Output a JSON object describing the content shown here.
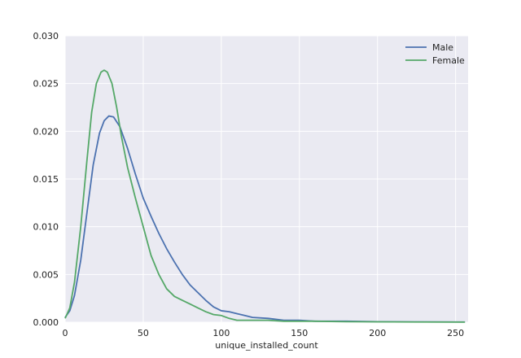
{
  "chart_data": {
    "type": "line",
    "title": "",
    "xlabel": "unique_installed_count",
    "ylabel": "",
    "xlim": [
      0,
      258
    ],
    "ylim": [
      0,
      0.03
    ],
    "x_ticks": [
      0,
      50,
      100,
      150,
      200,
      250
    ],
    "x_tick_labels": [
      "0",
      "50",
      "100",
      "150",
      "200",
      "250"
    ],
    "y_ticks": [
      0,
      0.005,
      0.01,
      0.015,
      0.02,
      0.025,
      0.03
    ],
    "y_tick_labels": [
      "0.000",
      "0.005",
      "0.010",
      "0.015",
      "0.020",
      "0.025",
      "0.030"
    ],
    "grid": true,
    "legend_position": "top-right",
    "background_color": "#EAEAF2",
    "series": [
      {
        "name": "Male",
        "color": "#4C72B0",
        "points": [
          [
            0,
            0.0005
          ],
          [
            3,
            0.0012
          ],
          [
            6,
            0.0028
          ],
          [
            10,
            0.0065
          ],
          [
            14,
            0.0115
          ],
          [
            18,
            0.0165
          ],
          [
            22,
            0.0198
          ],
          [
            25,
            0.0211
          ],
          [
            28,
            0.0216
          ],
          [
            31,
            0.0215
          ],
          [
            35,
            0.0205
          ],
          [
            40,
            0.0182
          ],
          [
            45,
            0.0155
          ],
          [
            50,
            0.013
          ],
          [
            55,
            0.0111
          ],
          [
            60,
            0.0093
          ],
          [
            65,
            0.0077
          ],
          [
            70,
            0.0063
          ],
          [
            75,
            0.005
          ],
          [
            80,
            0.0039
          ],
          [
            85,
            0.0031
          ],
          [
            90,
            0.0023
          ],
          [
            95,
            0.0016
          ],
          [
            100,
            0.0012
          ],
          [
            105,
            0.0011
          ],
          [
            110,
            0.0009
          ],
          [
            115,
            0.0007
          ],
          [
            120,
            0.0005
          ],
          [
            130,
            0.0004
          ],
          [
            140,
            0.0002
          ],
          [
            150,
            0.0002
          ],
          [
            160,
            0.0001
          ],
          [
            180,
            0.0001
          ],
          [
            200,
            5e-05
          ],
          [
            230,
            3e-05
          ],
          [
            256,
            2e-05
          ]
        ]
      },
      {
        "name": "Female",
        "color": "#55A868",
        "points": [
          [
            0,
            0.0004
          ],
          [
            3,
            0.0015
          ],
          [
            6,
            0.0042
          ],
          [
            10,
            0.01
          ],
          [
            14,
            0.017
          ],
          [
            17,
            0.022
          ],
          [
            20,
            0.025
          ],
          [
            23,
            0.0262
          ],
          [
            25,
            0.0264
          ],
          [
            27,
            0.0262
          ],
          [
            30,
            0.025
          ],
          [
            33,
            0.0225
          ],
          [
            36,
            0.0195
          ],
          [
            40,
            0.0162
          ],
          [
            45,
            0.013
          ],
          [
            50,
            0.01
          ],
          [
            55,
            0.007
          ],
          [
            60,
            0.005
          ],
          [
            65,
            0.0035
          ],
          [
            70,
            0.0027
          ],
          [
            75,
            0.0023
          ],
          [
            80,
            0.0019
          ],
          [
            85,
            0.0015
          ],
          [
            90,
            0.0011
          ],
          [
            95,
            0.0008
          ],
          [
            100,
            0.0007
          ],
          [
            105,
            0.0004
          ],
          [
            110,
            0.0002
          ],
          [
            120,
            0.0002
          ],
          [
            130,
            0.0002
          ],
          [
            140,
            0.0001
          ],
          [
            160,
            0.0001
          ],
          [
            180,
            5e-05
          ],
          [
            210,
            3e-05
          ],
          [
            256,
            1e-05
          ]
        ]
      }
    ]
  }
}
